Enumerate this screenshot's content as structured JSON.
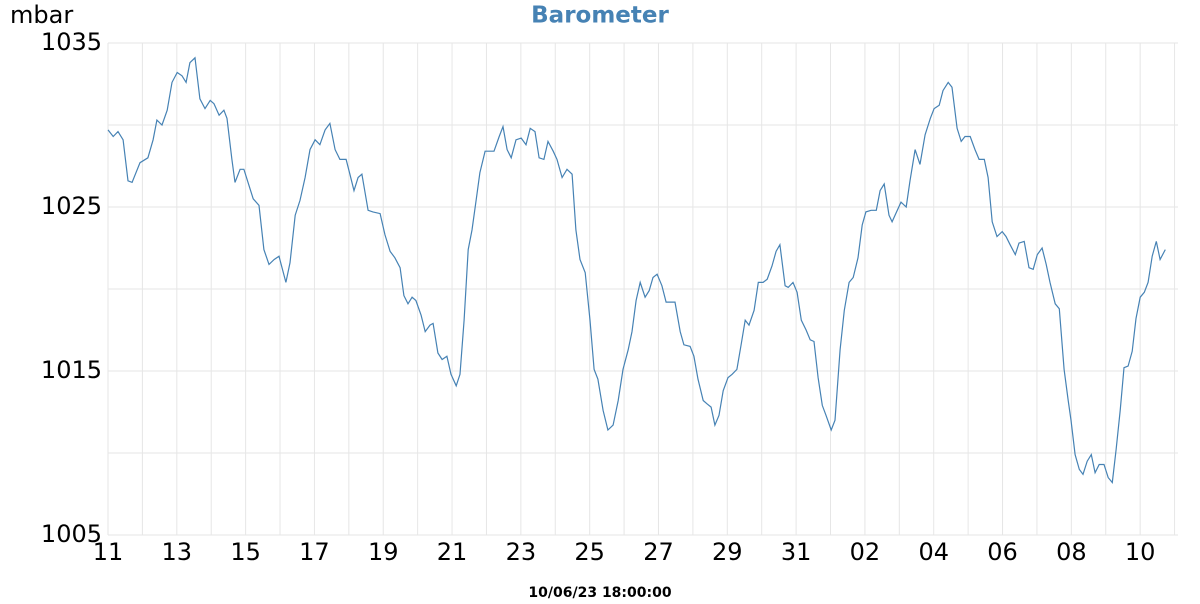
{
  "chart_data": {
    "type": "line",
    "title": "Barometer",
    "ylabel": "mbar",
    "footer": "10/06/23 18:00:00",
    "color": "#4682b4",
    "title_color": "#4682b4",
    "grid": true,
    "xlim": [
      0,
      31.1
    ],
    "ylim": [
      1005,
      1035
    ],
    "yticks": [
      1005,
      {
        "value": 1010,
        "label": null
      },
      1015,
      {
        "value": 1020,
        "label": null
      },
      1025,
      {
        "value": 1030,
        "label": null
      },
      1035
    ],
    "xticks": [
      {
        "value": 0,
        "label": "11"
      },
      {
        "value": 1,
        "label": null
      },
      {
        "value": 2,
        "label": "13"
      },
      {
        "value": 3,
        "label": null
      },
      {
        "value": 4,
        "label": "15"
      },
      {
        "value": 5,
        "label": null
      },
      {
        "value": 6,
        "label": "17"
      },
      {
        "value": 7,
        "label": null
      },
      {
        "value": 8,
        "label": "19"
      },
      {
        "value": 9,
        "label": null
      },
      {
        "value": 10,
        "label": "21"
      },
      {
        "value": 11,
        "label": null
      },
      {
        "value": 12,
        "label": "23"
      },
      {
        "value": 13,
        "label": null
      },
      {
        "value": 14,
        "label": "25"
      },
      {
        "value": 15,
        "label": null
      },
      {
        "value": 16,
        "label": "27"
      },
      {
        "value": 17,
        "label": null
      },
      {
        "value": 18,
        "label": "29"
      },
      {
        "value": 19,
        "label": null
      },
      {
        "value": 20,
        "label": "31"
      },
      {
        "value": 21,
        "label": null
      },
      {
        "value": 22,
        "label": "02"
      },
      {
        "value": 23,
        "label": null
      },
      {
        "value": 24,
        "label": "04"
      },
      {
        "value": 25,
        "label": null
      },
      {
        "value": 26,
        "label": "06"
      },
      {
        "value": 27,
        "label": null
      },
      {
        "value": 28,
        "label": "08"
      },
      {
        "value": 29,
        "label": null
      },
      {
        "value": 30,
        "label": "10"
      },
      {
        "value": 31,
        "label": null
      }
    ],
    "x": [
      0,
      0.15,
      0.29,
      0.44,
      0.58,
      0.7,
      0.93,
      1.16,
      1.31,
      1.42,
      1.57,
      1.72,
      1.86,
      2.01,
      2.15,
      2.27,
      2.38,
      2.53,
      2.67,
      2.82,
      2.97,
      3.08,
      3.23,
      3.37,
      3.46,
      3.6,
      3.69,
      3.84,
      3.95,
      4.22,
      4.39,
      4.53,
      4.68,
      4.83,
      4.97,
      5.17,
      5.29,
      5.44,
      5.58,
      5.73,
      5.87,
      6.02,
      6.16,
      6.31,
      6.45,
      6.6,
      6.74,
      6.92,
      7.03,
      7.15,
      7.27,
      7.38,
      7.56,
      7.7,
      7.91,
      8.05,
      8.2,
      8.34,
      8.49,
      8.6,
      8.72,
      8.84,
      8.95,
      9.1,
      9.22,
      9.36,
      9.45,
      9.59,
      9.71,
      9.85,
      9.97,
      10.12,
      10.23,
      10.35,
      10.47,
      10.58,
      10.7,
      10.81,
      10.96,
      11.1,
      11.22,
      11.37,
      11.48,
      11.6,
      11.72,
      11.86,
      12.01,
      12.15,
      12.27,
      12.41,
      12.53,
      12.67,
      12.79,
      12.94,
      13.05,
      13.2,
      13.34,
      13.49,
      13.6,
      13.72,
      13.87,
      14.01,
      14.13,
      14.24,
      14.39,
      14.53,
      14.68,
      14.83,
      14.97,
      15.12,
      15.23,
      15.35,
      15.47,
      15.61,
      15.73,
      15.84,
      15.96,
      16.1,
      16.22,
      16.37,
      16.48,
      16.63,
      16.74,
      16.92,
      17.03,
      17.15,
      17.3,
      17.41,
      17.53,
      17.64,
      17.76,
      17.88,
      18.02,
      18.14,
      18.28,
      18.4,
      18.52,
      18.63,
      18.78,
      18.9,
      19.04,
      19.16,
      19.3,
      19.42,
      19.53,
      19.68,
      19.77,
      19.91,
      20.03,
      20.15,
      20.29,
      20.41,
      20.52,
      20.64,
      20.76,
      20.87,
      21.02,
      21.13,
      21.28,
      21.4,
      21.54,
      21.66,
      21.8,
      21.92,
      22.03,
      22.18,
      22.33,
      22.44,
      22.56,
      22.7,
      22.79,
      22.94,
      23.05,
      23.2,
      23.31,
      23.46,
      23.6,
      23.75,
      23.9,
      24.01,
      24.16,
      24.27,
      24.42,
      24.53,
      24.68,
      24.8,
      24.91,
      25.06,
      25.2,
      25.32,
      25.47,
      25.58,
      25.7,
      25.84,
      25.99,
      26.1,
      26.22,
      26.37,
      26.48,
      26.63,
      26.77,
      26.89,
      27.01,
      27.15,
      27.27,
      27.38,
      27.53,
      27.65,
      27.79,
      27.91,
      27.99,
      28.11,
      28.23,
      28.34,
      28.46,
      28.58,
      28.69,
      28.81,
      28.95,
      29.07,
      29.19,
      29.3,
      29.42,
      29.53,
      29.65,
      29.77,
      29.88,
      30.0,
      30.12,
      30.23,
      30.35,
      30.47,
      30.58,
      30.73
    ],
    "values": [
      1029.7,
      1029.3,
      1029.6,
      1029.1,
      1026.6,
      1026.5,
      1027.7,
      1028.0,
      1029.1,
      1030.3,
      1030.0,
      1030.9,
      1032.6,
      1033.2,
      1033.0,
      1032.6,
      1033.8,
      1034.1,
      1031.6,
      1031.0,
      1031.5,
      1031.3,
      1030.6,
      1030.9,
      1030.4,
      1027.9,
      1026.5,
      1027.3,
      1027.3,
      1025.5,
      1025.1,
      1022.4,
      1021.5,
      1021.8,
      1022.0,
      1020.4,
      1021.6,
      1024.5,
      1025.4,
      1026.8,
      1028.5,
      1029.1,
      1028.8,
      1029.7,
      1030.1,
      1028.5,
      1027.9,
      1027.9,
      1027.0,
      1026.0,
      1026.8,
      1027.0,
      1024.8,
      1024.7,
      1024.6,
      1023.3,
      1022.3,
      1021.9,
      1021.3,
      1019.6,
      1019.1,
      1019.5,
      1019.3,
      1018.4,
      1017.4,
      1017.8,
      1017.9,
      1016.1,
      1015.7,
      1015.9,
      1014.8,
      1014.1,
      1014.8,
      1018.1,
      1022.4,
      1023.6,
      1025.4,
      1027.1,
      1028.4,
      1028.4,
      1028.4,
      1029.3,
      1029.9,
      1028.5,
      1028.0,
      1029.1,
      1029.2,
      1028.8,
      1029.8,
      1029.6,
      1028.0,
      1027.9,
      1029.0,
      1028.4,
      1027.9,
      1026.8,
      1027.3,
      1027.0,
      1023.6,
      1021.8,
      1021.0,
      1018.1,
      1015.1,
      1014.5,
      1012.6,
      1011.4,
      1011.7,
      1013.2,
      1015.1,
      1016.3,
      1017.4,
      1019.3,
      1020.4,
      1019.5,
      1019.9,
      1020.7,
      1020.9,
      1020.2,
      1019.2,
      1019.2,
      1019.2,
      1017.4,
      1016.6,
      1016.5,
      1015.9,
      1014.5,
      1013.2,
      1013.0,
      1012.8,
      1011.7,
      1012.3,
      1013.8,
      1014.6,
      1014.8,
      1015.1,
      1016.6,
      1018.1,
      1017.8,
      1018.7,
      1020.4,
      1020.4,
      1020.6,
      1021.4,
      1022.3,
      1022.7,
      1020.2,
      1020.1,
      1020.4,
      1019.8,
      1018.1,
      1017.5,
      1016.9,
      1016.8,
      1014.6,
      1012.9,
      1012.3,
      1011.4,
      1012.0,
      1016.3,
      1018.7,
      1020.4,
      1020.7,
      1021.9,
      1023.9,
      1024.7,
      1024.8,
      1024.8,
      1026.0,
      1026.4,
      1024.5,
      1024.1,
      1024.8,
      1025.3,
      1025.0,
      1026.6,
      1028.5,
      1027.6,
      1029.4,
      1030.4,
      1031.0,
      1031.2,
      1032.1,
      1032.6,
      1032.3,
      1029.8,
      1029.0,
      1029.3,
      1029.3,
      1028.5,
      1027.9,
      1027.9,
      1026.8,
      1024.1,
      1023.2,
      1023.5,
      1023.2,
      1022.7,
      1022.1,
      1022.8,
      1022.9,
      1021.3,
      1021.2,
      1022.1,
      1022.5,
      1021.5,
      1020.4,
      1019.1,
      1018.8,
      1015.1,
      1013.2,
      1012.0,
      1009.9,
      1009.0,
      1008.7,
      1009.5,
      1009.9,
      1008.8,
      1009.3,
      1009.3,
      1008.5,
      1008.2,
      1010.2,
      1012.6,
      1015.2,
      1015.3,
      1016.2,
      1018.2,
      1019.5,
      1019.8,
      1020.4,
      1022.0,
      1022.9,
      1021.8,
      1022.4
    ]
  }
}
